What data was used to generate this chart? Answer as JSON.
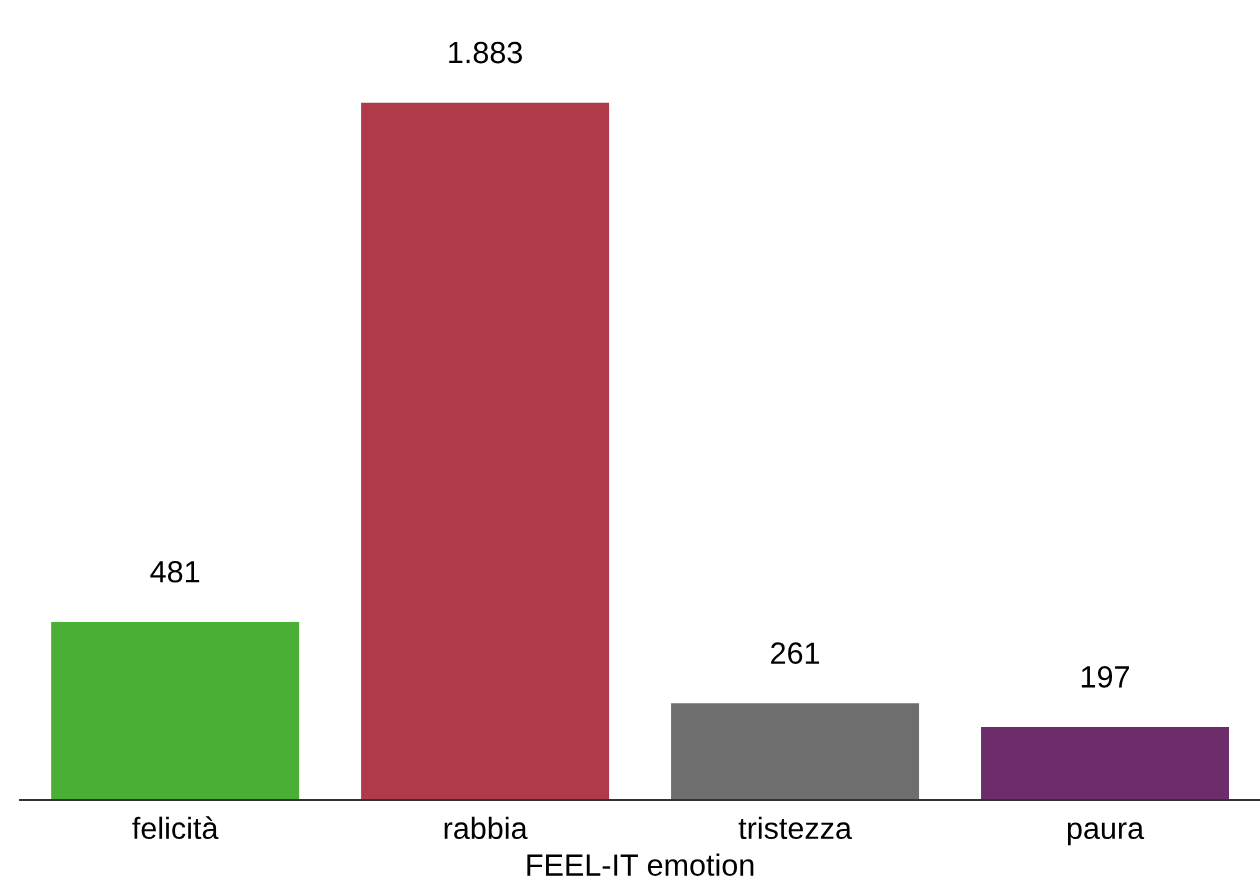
{
  "chart_data": {
    "type": "bar",
    "xlabel": "FEEL-IT emotion",
    "categories": [
      "felicità",
      "rabbia",
      "tristezza",
      "paura"
    ],
    "values": [
      481,
      1883,
      261,
      197
    ],
    "colors": [
      "#4aaf35",
      "#b0394a",
      "#6e6e6e",
      "#6c2d6a"
    ],
    "value_labels": [
      "481",
      "1.883",
      "261",
      "197"
    ],
    "grid": false,
    "legend": false
  }
}
